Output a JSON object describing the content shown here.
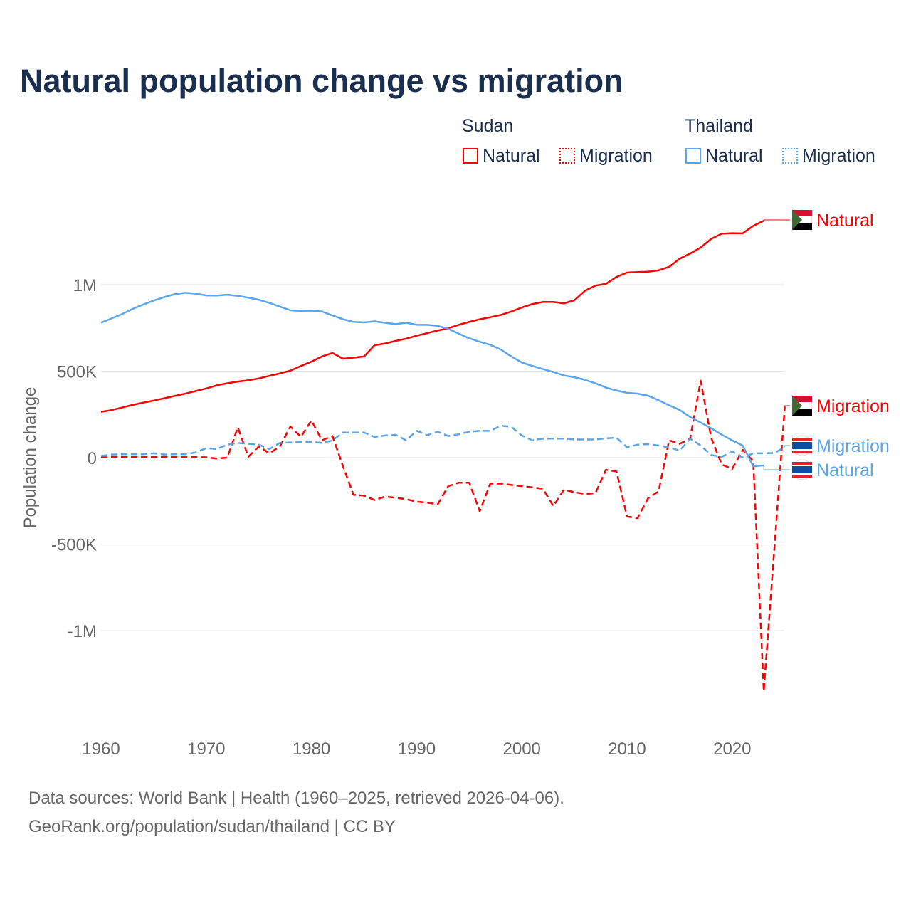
{
  "chart_data": {
    "type": "line",
    "title": "Natural population change vs migration",
    "ylabel": "Population change",
    "xlabel": "",
    "ylim": [
      -1400000,
      1500000
    ],
    "xlim": [
      1960,
      2025
    ],
    "x_ticks": [
      "1960",
      "1970",
      "1980",
      "1990",
      "2000",
      "2010",
      "2020"
    ],
    "y_ticks": [
      {
        "v": 1000000,
        "label": "1M"
      },
      {
        "v": 500000,
        "label": "500K"
      },
      {
        "v": 0,
        "label": "0"
      },
      {
        "v": -500000,
        "label": "-500K"
      },
      {
        "v": -1000000,
        "label": "-1M"
      }
    ],
    "grid": true,
    "legend": {
      "placement": "top-right",
      "groups": [
        {
          "country": "Sudan",
          "items": [
            "Natural",
            "Migration"
          ]
        },
        {
          "country": "Thailand",
          "items": [
            "Natural",
            "Migration"
          ]
        }
      ]
    },
    "x_start": 1960,
    "series": [
      {
        "name": "Sudan Natural",
        "country": "Sudan",
        "kind": "Natural",
        "color": "#ff0000",
        "dash": false,
        "end_label": "Natural",
        "values": [
          265,
          275,
          290,
          305,
          318,
          330,
          343,
          357,
          370,
          385,
          400,
          418,
          430,
          440,
          447,
          458,
          473,
          487,
          503,
          530,
          555,
          585,
          605,
          572,
          578,
          585,
          650,
          660,
          675,
          688,
          705,
          720,
          735,
          748,
          768,
          785,
          800,
          812,
          825,
          845,
          868,
          888,
          900,
          900,
          892,
          910,
          965,
          995,
          1005,
          1045,
          1070,
          1073,
          1075,
          1083,
          1103,
          1150,
          1180,
          1215,
          1265,
          1295,
          1298,
          1297,
          1340,
          1370,
          null,
          null
        ]
      },
      {
        "name": "Sudan Migration",
        "country": "Sudan",
        "kind": "Migration",
        "color": "#ff0000",
        "dash": true,
        "end_label": "Migration",
        "values": [
          2,
          3,
          3,
          3,
          3,
          4,
          3,
          3,
          3,
          3,
          2,
          -5,
          0,
          175,
          5,
          65,
          25,
          65,
          180,
          120,
          215,
          100,
          125,
          -50,
          -215,
          -220,
          -245,
          -225,
          -232,
          -240,
          -255,
          -260,
          -270,
          -165,
          -145,
          -145,
          -310,
          -150,
          -150,
          -158,
          -165,
          -172,
          -180,
          -280,
          -185,
          -200,
          -210,
          -205,
          -70,
          -80,
          -340,
          -350,
          -235,
          -195,
          100,
          80,
          110,
          445,
          115,
          -40,
          -65,
          45,
          -20,
          -1350,
          -530,
          295
        ]
      },
      {
        "name": "Thailand Migration",
        "country": "Thailand",
        "kind": "Migration",
        "color": "#5aa5ec",
        "dash": true,
        "end_label": "Migration",
        "values": [
          10,
          18,
          20,
          20,
          20,
          25,
          18,
          20,
          20,
          30,
          55,
          50,
          75,
          85,
          80,
          75,
          50,
          85,
          88,
          90,
          92,
          85,
          100,
          145,
          145,
          145,
          120,
          128,
          132,
          100,
          155,
          130,
          150,
          125,
          135,
          150,
          155,
          155,
          185,
          178,
          128,
          100,
          110,
          110,
          110,
          105,
          105,
          105,
          112,
          115,
          60,
          75,
          78,
          70,
          60,
          40,
          110,
          70,
          15,
          5,
          35,
          0,
          25,
          25,
          27,
          60
        ]
      },
      {
        "name": "Thailand Natural",
        "country": "Thailand",
        "kind": "Natural",
        "color": "#5aa5ec",
        "dash": false,
        "end_label": "Natural",
        "values": [
          780,
          805,
          830,
          860,
          885,
          908,
          928,
          945,
          953,
          948,
          938,
          937,
          942,
          935,
          925,
          913,
          895,
          873,
          852,
          848,
          850,
          845,
          822,
          800,
          785,
          782,
          788,
          780,
          772,
          780,
          768,
          768,
          762,
          745,
          717,
          690,
          670,
          652,
          625,
          585,
          550,
          530,
          512,
          495,
          475,
          465,
          450,
          430,
          405,
          388,
          375,
          370,
          358,
          332,
          303,
          276,
          235,
          203,
          170,
          133,
          100,
          70,
          -50,
          -45,
          null,
          null
        ]
      }
    ],
    "value_unit": "thousands"
  },
  "footer": {
    "line1": "Data sources: World Bank | Health (1960–2025, retrieved 2026-04-06).",
    "line2": "GeoRank.org/population/sudan/thailand | CC BY"
  }
}
